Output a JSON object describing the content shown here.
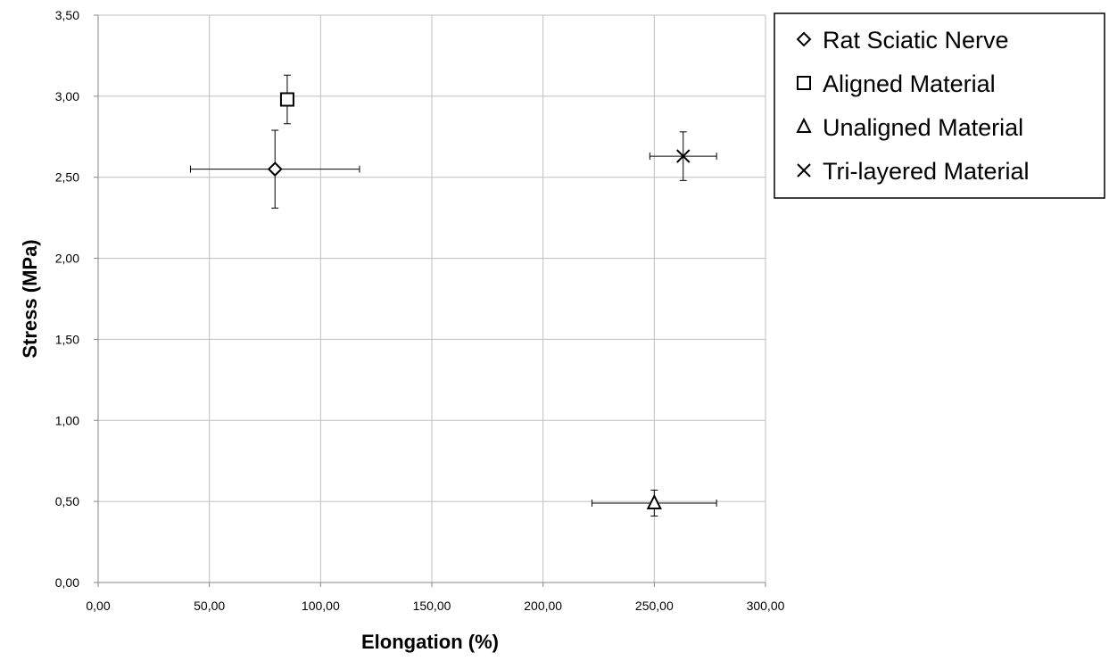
{
  "chart_data": {
    "type": "scatter",
    "title": "",
    "xlabel": "Elongation (%)",
    "ylabel": "Stress (MPa)",
    "xlim": [
      0,
      300
    ],
    "ylim": [
      0,
      3.5
    ],
    "x_ticks": [
      "0,00",
      "50,00",
      "100,00",
      "150,00",
      "200,00",
      "250,00",
      "300,00"
    ],
    "y_ticks": [
      "0,00",
      "0,50",
      "1,00",
      "1,50",
      "2,00",
      "2,50",
      "3,00",
      "3,50"
    ],
    "grid": true,
    "legend_position": "top-right (outside plot area)",
    "series": [
      {
        "name": "Rat Sciatic Nerve",
        "marker": "diamond",
        "x": 79.5,
        "y": 2.55,
        "x_err": 38,
        "y_err": 0.24
      },
      {
        "name": "Aligned Material",
        "marker": "square",
        "x": 85,
        "y": 2.98,
        "x_err": 0,
        "y_err": 0.15
      },
      {
        "name": "Unaligned Material",
        "marker": "triangle",
        "x": 250,
        "y": 0.49,
        "x_err": 28,
        "y_err": 0.08
      },
      {
        "name": "Tri-layered Material",
        "marker": "x",
        "x": 263,
        "y": 2.63,
        "x_err": 15,
        "y_err": 0.15
      }
    ],
    "colors": {
      "marker": "#000000",
      "grid": "#bfbfbf",
      "axis": "#868686"
    }
  }
}
